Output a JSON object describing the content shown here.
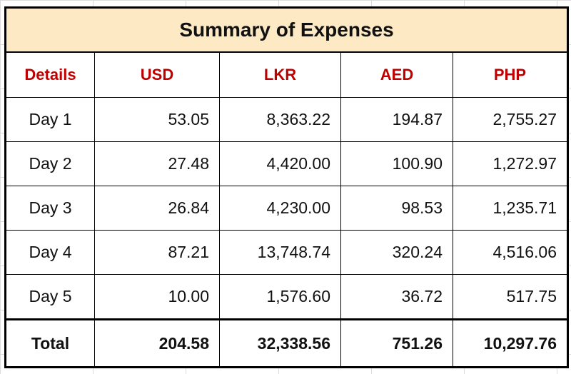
{
  "title": "Summary of Expenses",
  "headers": [
    "Details",
    "USD",
    "LKR",
    "AED",
    "PHP"
  ],
  "rows": [
    {
      "label": "Day 1",
      "values": [
        "53.05",
        "8,363.22",
        "194.87",
        "2,755.27"
      ]
    },
    {
      "label": "Day 2",
      "values": [
        "27.48",
        "4,420.00",
        "100.90",
        "1,272.97"
      ]
    },
    {
      "label": "Day 3",
      "values": [
        "26.84",
        "4,230.00",
        "98.53",
        "1,235.71"
      ]
    },
    {
      "label": "Day 4",
      "values": [
        "87.21",
        "13,748.74",
        "320.24",
        "4,516.06"
      ]
    },
    {
      "label": "Day 5",
      "values": [
        "10.00",
        "1,576.60",
        "36.72",
        "517.75"
      ]
    }
  ],
  "total": {
    "label": "Total",
    "values": [
      "204.58",
      "32,338.56",
      "751.26",
      "10,297.76"
    ]
  },
  "colors": {
    "title_fill": "#fde9c3",
    "header_text": "#c00000"
  }
}
